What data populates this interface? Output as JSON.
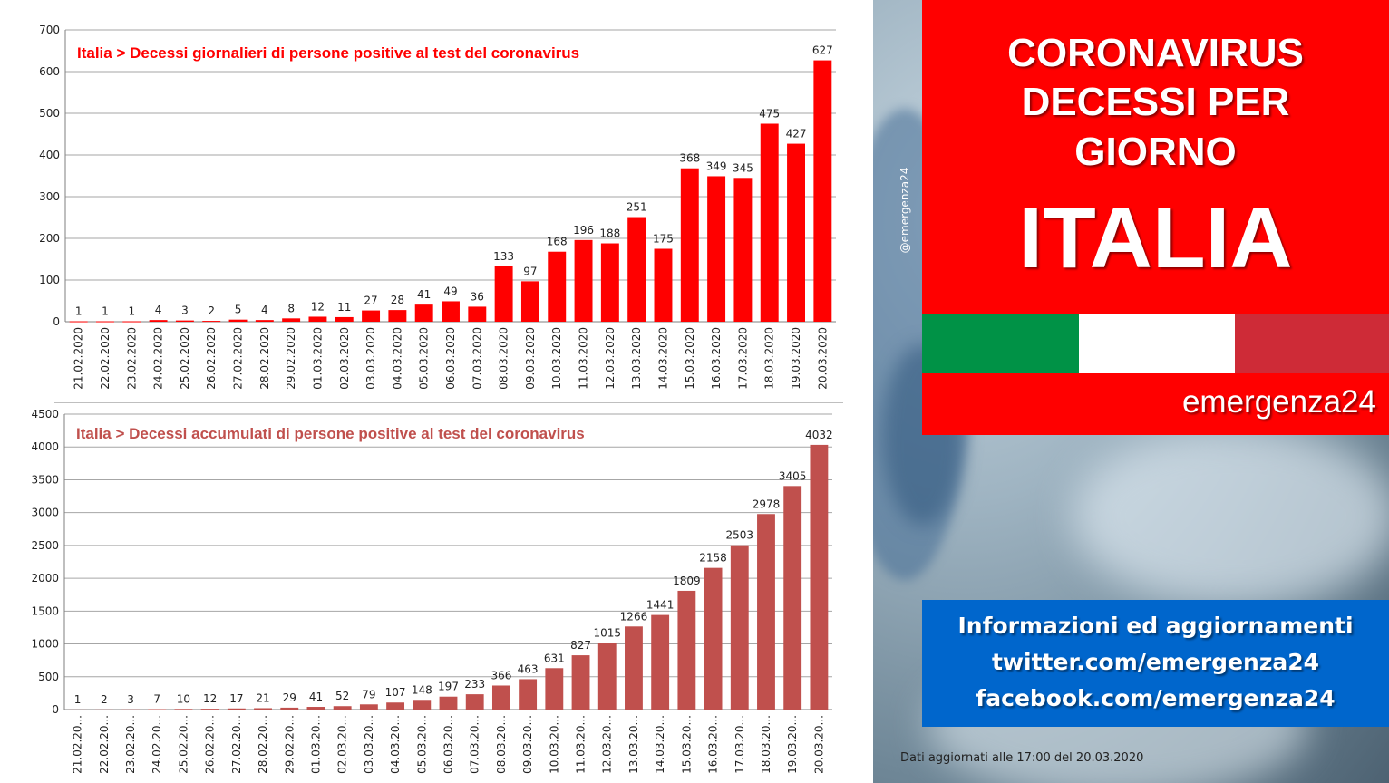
{
  "watermark": "@emergenza24",
  "headline": {
    "line1": "CORONAVIRUS",
    "line2": "DECESSI PER",
    "line3": "GIORNO",
    "country": "ITALIA"
  },
  "brand": "emergenza24",
  "info": {
    "line1": "Informazioni ed aggiornamenti",
    "line2": "twitter.com/emergenza24",
    "line3": "facebook.com/emergenza24"
  },
  "footer": "Dati aggiornati alle  17:00 del 20.03.2020",
  "colors": {
    "red": "#ff0000",
    "blue": "#0066cc",
    "flag_green": "#009246",
    "flag_white": "#ffffff",
    "flag_red": "#ce2b37",
    "daily_bar": "#ff0000",
    "cumulative_bar": "#c0504d"
  },
  "chart_data": [
    {
      "type": "bar",
      "title": "Italia > Decessi giornalieri di persone positive al test del coronavirus",
      "categories": [
        "21.02.2020",
        "22.02.2020",
        "23.02.2020",
        "24.02.2020",
        "25.02.2020",
        "26.02.2020",
        "27.02.2020",
        "28.02.2020",
        "29.02.2020",
        "01.03.2020",
        "02.03.2020",
        "03.03.2020",
        "04.03.2020",
        "05.03.2020",
        "06.03.2020",
        "07.03.2020",
        "08.03.2020",
        "09.03.2020",
        "10.03.2020",
        "11.03.2020",
        "12.03.2020",
        "13.03.2020",
        "14.03.2020",
        "15.03.2020",
        "16.03.2020",
        "17.03.2020",
        "18.03.2020",
        "19.03.2020",
        "20.03.2020"
      ],
      "values": [
        1,
        1,
        1,
        4,
        3,
        2,
        5,
        4,
        8,
        12,
        11,
        27,
        28,
        41,
        49,
        36,
        133,
        97,
        168,
        196,
        188,
        251,
        175,
        368,
        349,
        345,
        475,
        427,
        627
      ],
      "ylim": [
        0,
        700
      ],
      "yticks": [
        0,
        100,
        200,
        300,
        400,
        500,
        600,
        700
      ],
      "grid": true,
      "color": "#ff0000"
    },
    {
      "type": "bar",
      "title": "Italia > Decessi accumulati di persone positive al test del coronavirus",
      "categories": [
        "21.02.20...",
        "22.02.20...",
        "23.02.20...",
        "24.02.20...",
        "25.02.20...",
        "26.02.20...",
        "27.02.20...",
        "28.02.20...",
        "29.02.20...",
        "01.03.20...",
        "02.03.20...",
        "03.03.20...",
        "04.03.20...",
        "05.03.20...",
        "06.03.20...",
        "07.03.20...",
        "08.03.20...",
        "09.03.20...",
        "10.03.20...",
        "11.03.20...",
        "12.03.20...",
        "13.03.20...",
        "14.03.20...",
        "15.03.20...",
        "16.03.20...",
        "17.03.20...",
        "18.03.20...",
        "19.03.20...",
        "20.03.20..."
      ],
      "values": [
        1,
        2,
        3,
        7,
        10,
        12,
        17,
        21,
        29,
        41,
        52,
        79,
        107,
        148,
        197,
        233,
        366,
        463,
        631,
        827,
        1015,
        1266,
        1441,
        1809,
        2158,
        2503,
        2978,
        3405,
        4032
      ],
      "ylim": [
        0,
        4500
      ],
      "yticks": [
        0,
        500,
        1000,
        1500,
        2000,
        2500,
        3000,
        3500,
        4000,
        4500
      ],
      "grid": true,
      "color": "#c0504d"
    }
  ]
}
